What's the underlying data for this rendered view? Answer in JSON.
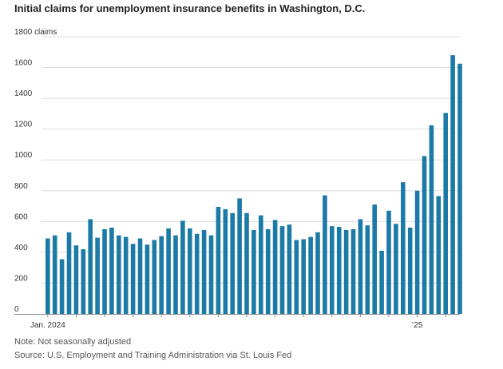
{
  "title": "Initial claims for unemployment insurance benefits in Washington, D.C.",
  "note": "Note: Not seasonally adjusted",
  "source": "Source: U.S. Employment and Training Administration via St. Louis Fed",
  "colors": {
    "bar": "#1b7aa6",
    "grid": "#dddddd",
    "axis": "#888888"
  },
  "chart_data": {
    "type": "bar",
    "title": "Initial claims for unemployment insurance benefits in Washington, D.C.",
    "ylim": [
      0,
      1800
    ],
    "y_ticks": [
      {
        "value": 0,
        "label": "0"
      },
      {
        "value": 200,
        "label": "200"
      },
      {
        "value": 400,
        "label": "400"
      },
      {
        "value": 600,
        "label": "600"
      },
      {
        "value": 800,
        "label": "800"
      },
      {
        "value": 1000,
        "label": "1000"
      },
      {
        "value": 1200,
        "label": "1200"
      },
      {
        "value": 1400,
        "label": "1400"
      },
      {
        "value": 1600,
        "label": "1600"
      },
      {
        "value": 1800,
        "label": "1800 claims"
      }
    ],
    "x_labels": [
      {
        "index": 0,
        "label": "Jan. 2024"
      },
      {
        "index": 52,
        "label": "’25"
      }
    ],
    "grid": true,
    "values": [
      490,
      510,
      355,
      530,
      445,
      420,
      615,
      495,
      550,
      560,
      510,
      500,
      455,
      490,
      450,
      480,
      505,
      555,
      510,
      605,
      555,
      520,
      545,
      510,
      695,
      680,
      655,
      750,
      655,
      545,
      640,
      550,
      610,
      570,
      580,
      480,
      485,
      500,
      530,
      770,
      570,
      565,
      545,
      550,
      615,
      575,
      710,
      410,
      670,
      585,
      855,
      560,
      800,
      1025,
      1225,
      765,
      1305,
      1680,
      1625
    ]
  }
}
